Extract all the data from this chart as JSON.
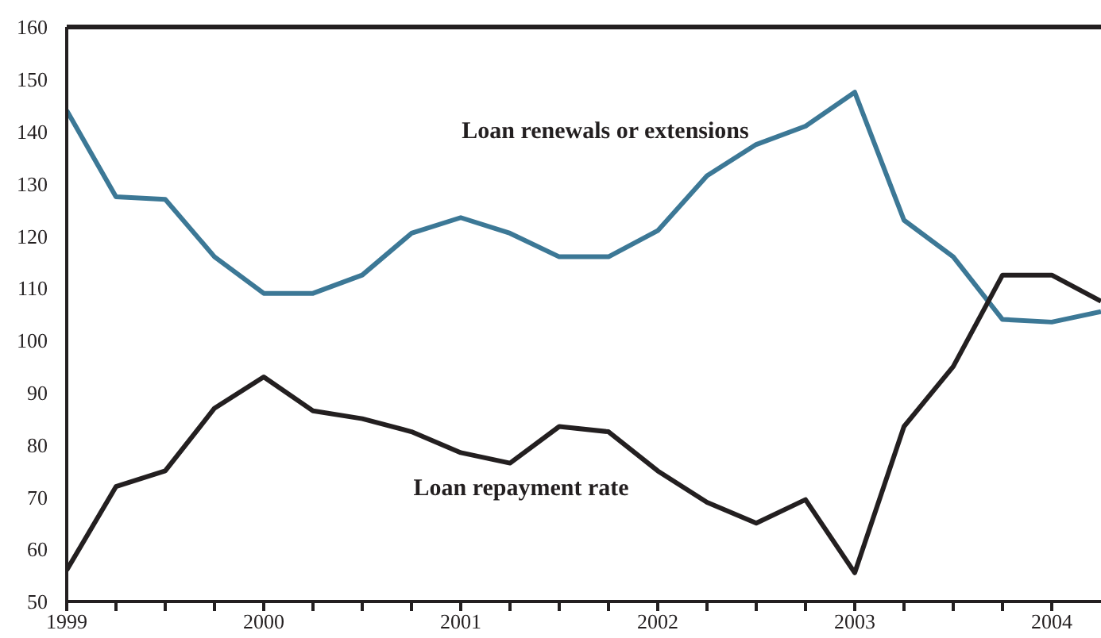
{
  "chart_data": {
    "type": "line",
    "x": [
      1999,
      1999.25,
      1999.5,
      1999.75,
      2000,
      2000.25,
      2000.5,
      2000.75,
      2001,
      2001.25,
      2001.5,
      2001.75,
      2002,
      2002.25,
      2002.5,
      2002.75,
      2003,
      2003.25,
      2003.5,
      2003.75,
      2004,
      2004.25
    ],
    "series": [
      {
        "name": "Loan renewals or extensions",
        "color": "#3c7896",
        "values": [
          144,
          127.5,
          127,
          116,
          109,
          109,
          112.5,
          120.5,
          123.5,
          120.5,
          116,
          116,
          121,
          131.5,
          137.5,
          141,
          147.5,
          123,
          116,
          104,
          103.5,
          105.5
        ]
      },
      {
        "name": "Loan repayment rate",
        "color": "#231f20",
        "values": [
          56,
          72,
          75,
          87,
          93,
          86.5,
          85,
          82.5,
          78.5,
          76.5,
          83.5,
          82.5,
          75,
          69,
          65,
          69.5,
          55.5,
          83.5,
          95,
          112.5,
          112.5,
          107.5
        ]
      }
    ],
    "xlim": [
      1999,
      2004.25
    ],
    "xticks": [
      1999,
      {
        "value": 1999.25,
        "label": null
      },
      {
        "value": 1999.5,
        "label": null
      },
      {
        "value": 1999.75,
        "label": null
      },
      2000,
      {
        "value": 2000.25,
        "label": null
      },
      {
        "value": 2000.5,
        "label": null
      },
      {
        "value": 2000.75,
        "label": null
      },
      2001,
      {
        "value": 2001.25,
        "label": null
      },
      {
        "value": 2001.5,
        "label": null
      },
      {
        "value": 2001.75,
        "label": null
      },
      2002,
      {
        "value": 2002.25,
        "label": null
      },
      {
        "value": 2002.5,
        "label": null
      },
      {
        "value": 2002.75,
        "label": null
      },
      2003,
      {
        "value": 2003.25,
        "label": null
      },
      {
        "value": 2003.5,
        "label": null
      },
      {
        "value": 2003.75,
        "label": null
      },
      2004
    ],
    "ylim": [
      50,
      160
    ],
    "yticks": [
      50,
      60,
      70,
      80,
      90,
      100,
      110,
      120,
      130,
      140,
      150,
      160
    ],
    "grid": false,
    "legend": false,
    "marker": "none",
    "line_style": "solid"
  }
}
